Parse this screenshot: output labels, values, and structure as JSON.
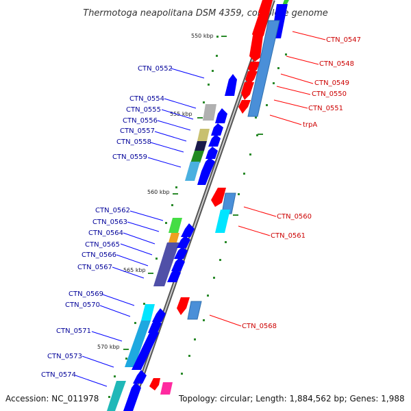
{
  "title": "Thermotoga neapolitana DSM 4359, complete genome",
  "footer": {
    "accession": "Accession: NC_011978",
    "summary": "Topology: circular; Length: 1,884,562 bp; Genes: 1,988"
  },
  "ticks": [
    "550 kbp",
    "555 kbp",
    "560 kbp",
    "565 kbp",
    "570 kbp"
  ],
  "labels": {
    "CTN_0547": "CTN_0547",
    "CTN_0548": "CTN_0548",
    "CTN_0549": "CTN_0549",
    "CTN_0550": "CTN_0550",
    "CTN_0551": "CTN_0551",
    "trpA": "trpA",
    "CTN_0552": "CTN_0552",
    "CTN_0554": "CTN_0554",
    "CTN_0555": "CTN_0555",
    "CTN_0556": "CTN_0556",
    "CTN_0557": "CTN_0557",
    "CTN_0558": "CTN_0558",
    "CTN_0559": "CTN_0559",
    "CTN_0560": "CTN_0560",
    "CTN_0561": "CTN_0561",
    "CTN_0562": "CTN_0562",
    "CTN_0563": "CTN_0563",
    "CTN_0564": "CTN_0564",
    "CTN_0565": "CTN_0565",
    "CTN_0566": "CTN_0566",
    "CTN_0567": "CTN_0567",
    "CTN_0568": "CTN_0568",
    "CTN_0569": "CTN_0569",
    "CTN_0570": "CTN_0570",
    "CTN_0571": "CTN_0571",
    "CTN_0573": "CTN_0573",
    "CTN_0574": "CTN_0574"
  },
  "colors": {
    "forward_gene": "#ff0000",
    "reverse_gene": "#0000ff",
    "forward_label": "#cc0000",
    "reverse_label": "#000099",
    "backbone": "#888888",
    "tick": "#2a8a2a"
  }
}
